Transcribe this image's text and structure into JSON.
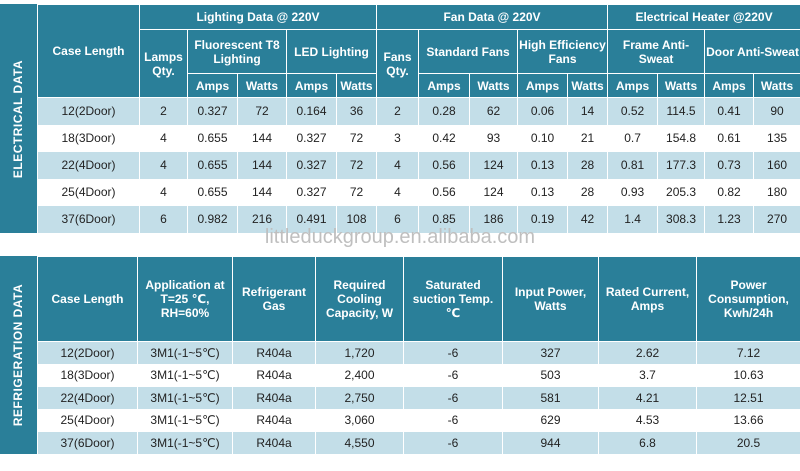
{
  "watermark": "littleduckgroup.en.alibaba.com",
  "electrical": {
    "side_label": "ELECTRICAL DATA",
    "headers": {
      "case_length": "Case Length",
      "lighting_group": "Lighting Data @ 220V",
      "fan_group": "Fan Data @ 220V",
      "heater_group": "Electrical Heater @220V",
      "lamps_qty": "Lamps Qty.",
      "fluorescent": "Fluorescent T8 Lighting",
      "led": "LED Lighting",
      "fans_qty": "Fans Qty.",
      "standard_fans": "Standard Fans",
      "high_eff_fans": "High Efficiency Fans",
      "frame_anti_sweat": "Frame Anti-Sweat",
      "door_anti_sweat": "Door Anti-Sweat",
      "amps": "Amps",
      "watts": "Watts"
    },
    "rows": [
      [
        "12(2Door)",
        "2",
        "0.327",
        "72",
        "0.164",
        "36",
        "2",
        "0.28",
        "62",
        "0.06",
        "14",
        "0.52",
        "114.5",
        "0.41",
        "90"
      ],
      [
        "18(3Door)",
        "4",
        "0.655",
        "144",
        "0.327",
        "72",
        "3",
        "0.42",
        "93",
        "0.10",
        "21",
        "0.7",
        "154.8",
        "0.61",
        "135"
      ],
      [
        "22(4Door)",
        "4",
        "0.655",
        "144",
        "0.327",
        "72",
        "4",
        "0.56",
        "124",
        "0.13",
        "28",
        "0.81",
        "177.3",
        "0.73",
        "160"
      ],
      [
        "25(4Door)",
        "4",
        "0.655",
        "144",
        "0.327",
        "72",
        "4",
        "0.56",
        "124",
        "0.13",
        "28",
        "0.93",
        "205.3",
        "0.82",
        "180"
      ],
      [
        "37(6Door)",
        "6",
        "0.982",
        "216",
        "0.491",
        "108",
        "6",
        "0.85",
        "186",
        "0.19",
        "42",
        "1.4",
        "308.3",
        "1.23",
        "270"
      ]
    ]
  },
  "refrigeration": {
    "side_label": "REFRIGERATION DATA",
    "headers": [
      "Case Length",
      "Application at T=25 ℃, RH=60%",
      "Refrigerant Gas",
      "Required Cooling Capacity, W",
      "Saturated suction Temp. ℃",
      "Input Power, Watts",
      "Rated Current, Amps",
      "Power Consumption, Kwh/24h"
    ],
    "rows": [
      [
        "12(2Door)",
        "3M1(-1~5℃)",
        "R404a",
        "1,720",
        "-6",
        "327",
        "2.62",
        "7.12"
      ],
      [
        "18(3Door)",
        "3M1(-1~5℃)",
        "R404a",
        "2,400",
        "-6",
        "503",
        "3.7",
        "10.63"
      ],
      [
        "22(4Door)",
        "3M1(-1~5℃)",
        "R404a",
        "2,750",
        "-6",
        "581",
        "4.21",
        "12.51"
      ],
      [
        "25(4Door)",
        "3M1(-1~5℃)",
        "R404a",
        "3,060",
        "-6",
        "629",
        "4.53",
        "13.66"
      ],
      [
        "37(6Door)",
        "3M1(-1~5℃)",
        "R404a",
        "4,550",
        "-6",
        "944",
        "6.8",
        "20.5"
      ]
    ]
  }
}
